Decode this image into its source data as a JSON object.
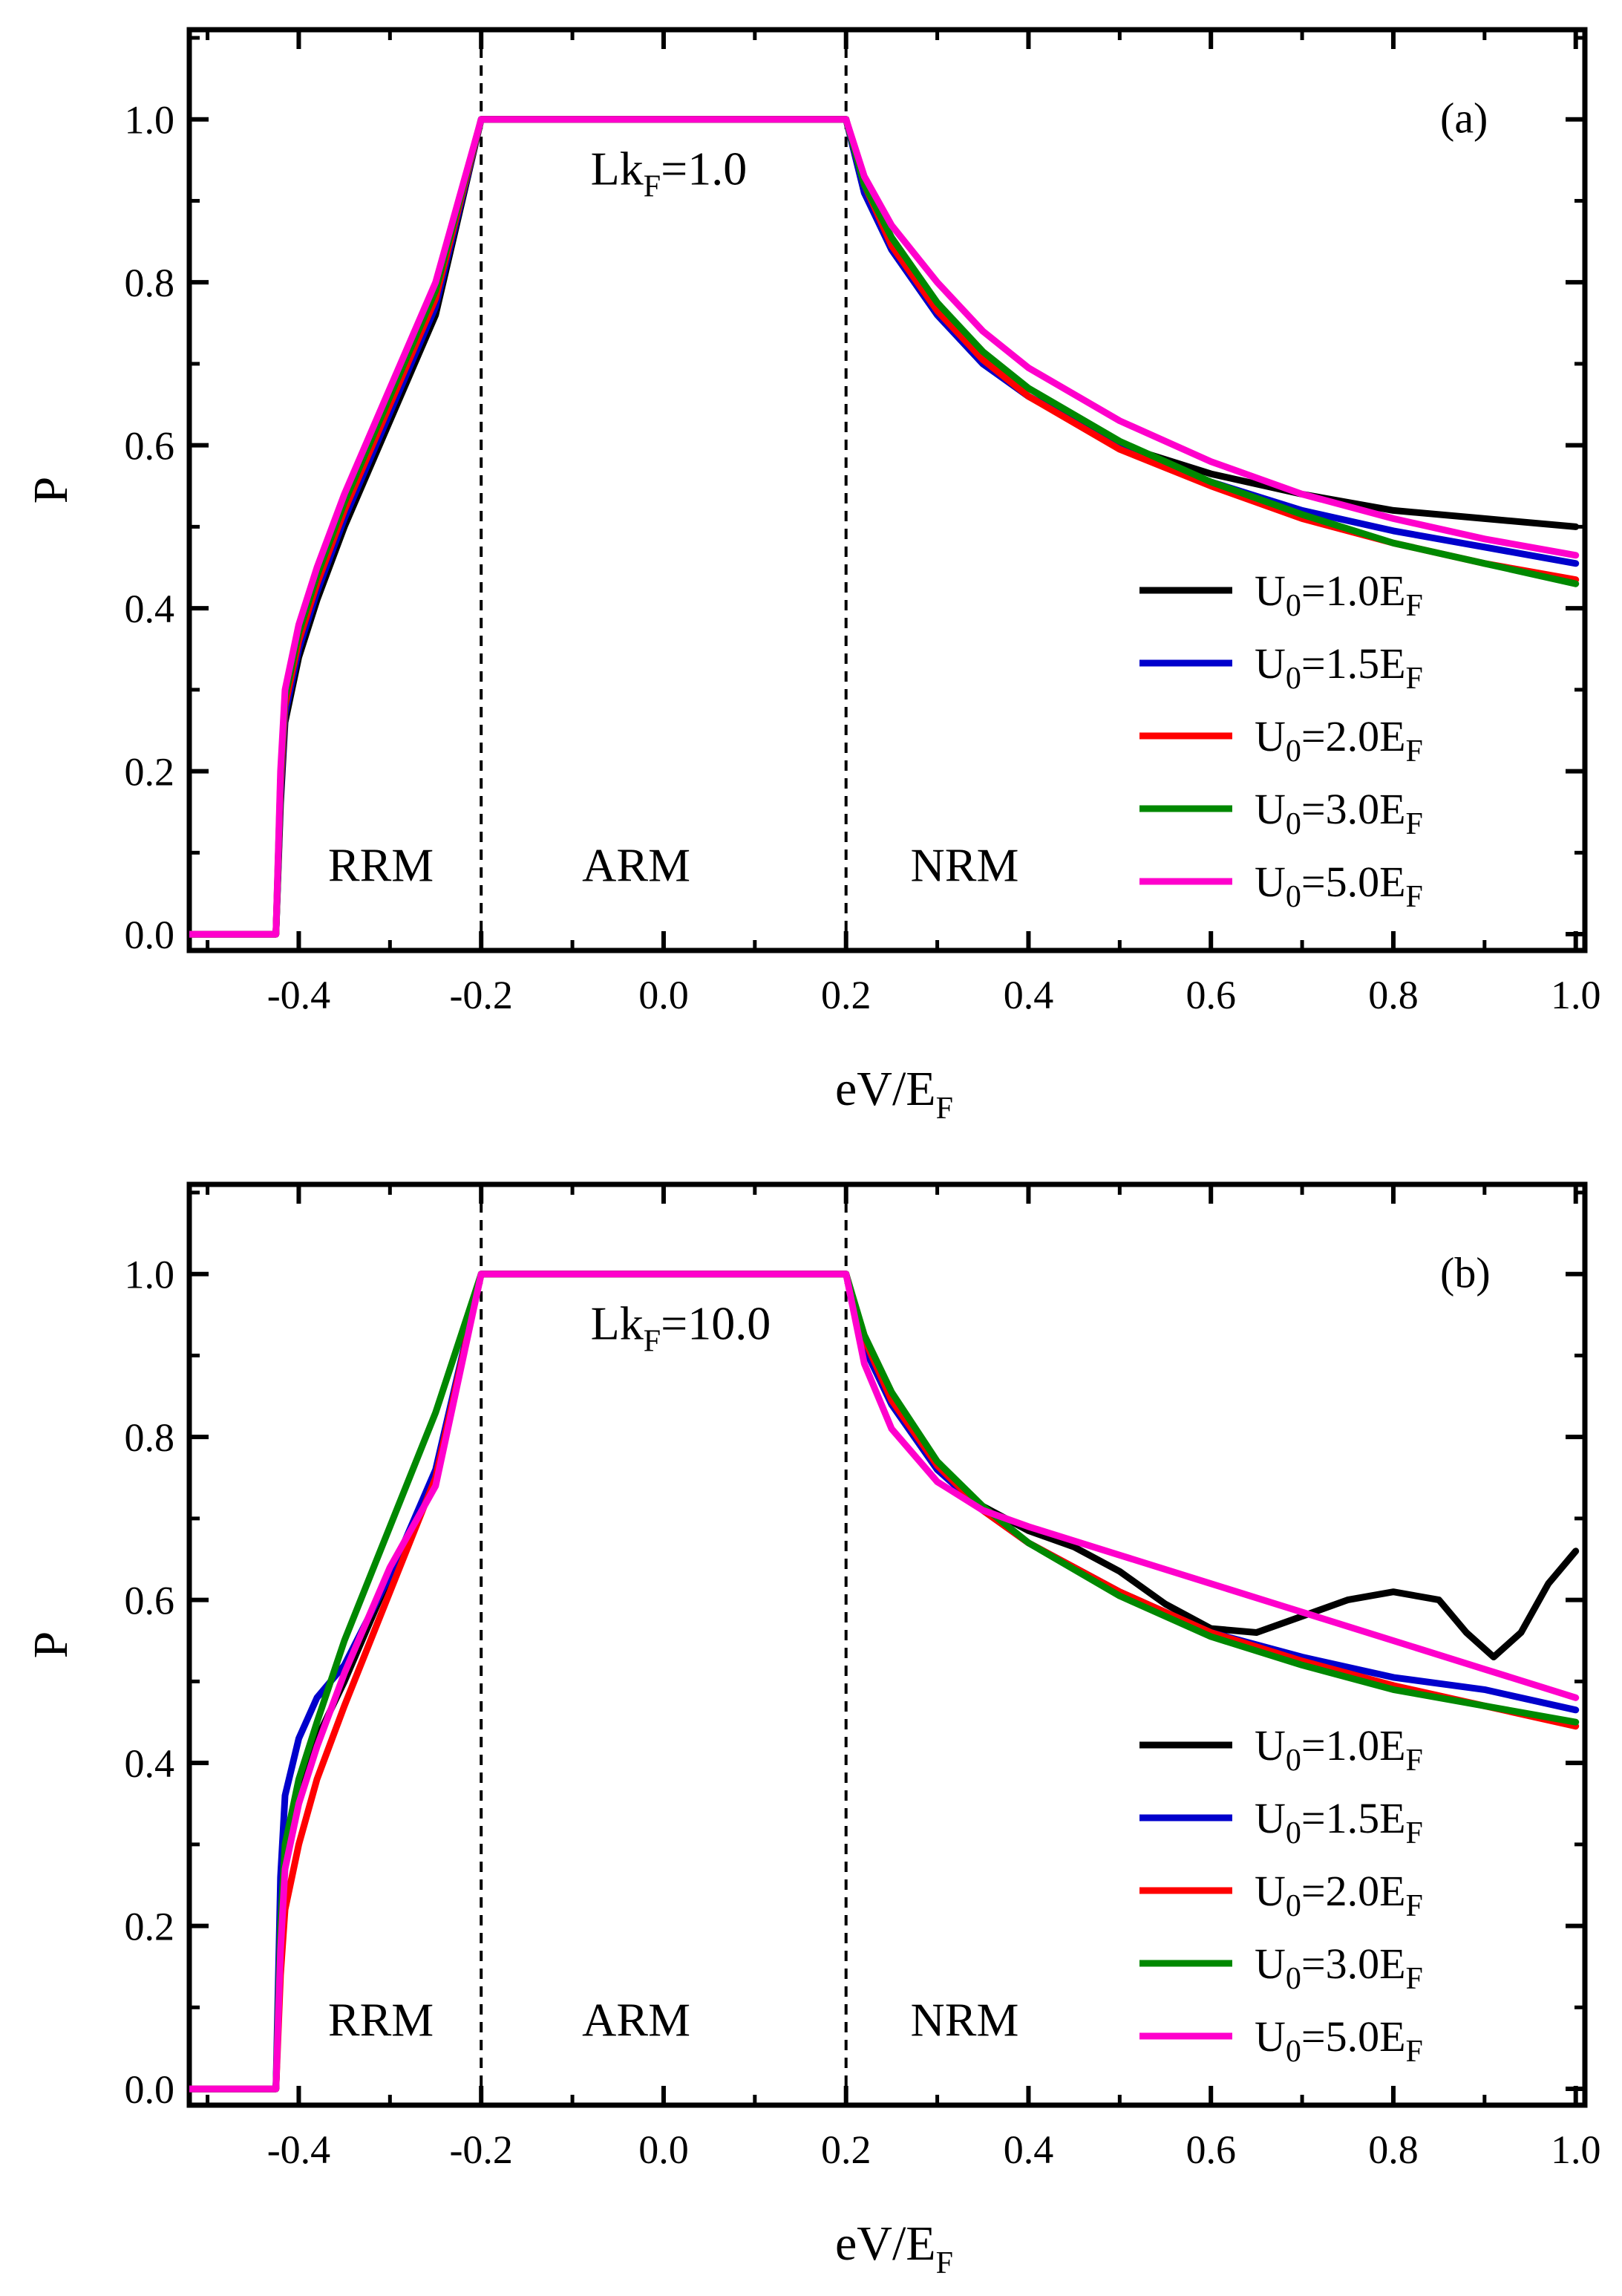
{
  "chart_data": [
    {
      "type": "line",
      "panel_label": "(a)",
      "parameter_label": {
        "main": "Lk",
        "sub": "F",
        "rest": "=1.0"
      },
      "xlabel": {
        "main": "eV/E",
        "sub": "F"
      },
      "ylabel": "P",
      "xlim": [
        -0.52,
        1.01
      ],
      "ylim": [
        -0.02,
        1.11
      ],
      "xticks": [
        "-0.4",
        "-0.2",
        "0.0",
        "0.2",
        "0.4",
        "0.6",
        "0.8",
        "1.0"
      ],
      "yticks": [
        "0.0",
        "0.2",
        "0.4",
        "0.6",
        "0.8",
        "1.0"
      ],
      "vlines": [
        -0.2,
        0.2
      ],
      "regions": [
        {
          "label": "RRM",
          "x": -0.31
        },
        {
          "label": "ARM",
          "x": -0.03
        },
        {
          "label": "NRM",
          "x": 0.33
        }
      ],
      "legend_position": "lower-right",
      "series": [
        {
          "name": "U0=1.0EF",
          "legend": {
            "pre": "U",
            "sub1": "0",
            "mid": "=1.0E",
            "sub2": "F"
          },
          "color": "#000000",
          "x": [
            -0.52,
            -0.425,
            -0.42,
            -0.415,
            -0.4,
            -0.38,
            -0.35,
            -0.3,
            -0.25,
            -0.2,
            0.2,
            0.22,
            0.25,
            0.3,
            0.35,
            0.4,
            0.5,
            0.6,
            0.7,
            0.8,
            0.9,
            1.0
          ],
          "y": [
            0.0,
            0.0,
            0.16,
            0.26,
            0.34,
            0.41,
            0.5,
            0.63,
            0.76,
            1.0,
            1.0,
            0.91,
            0.84,
            0.76,
            0.7,
            0.66,
            0.6,
            0.565,
            0.54,
            0.52,
            0.51,
            0.5
          ]
        },
        {
          "name": "U0=1.5EF",
          "legend": {
            "pre": "U",
            "sub1": "0",
            "mid": "=1.5E",
            "sub2": "F"
          },
          "color": "#0000cc",
          "x": [
            -0.52,
            -0.425,
            -0.42,
            -0.415,
            -0.4,
            -0.38,
            -0.35,
            -0.3,
            -0.25,
            -0.2,
            0.2,
            0.22,
            0.25,
            0.3,
            0.35,
            0.4,
            0.5,
            0.6,
            0.7,
            0.8,
            0.9,
            1.0
          ],
          "y": [
            0.0,
            0.0,
            0.17,
            0.27,
            0.35,
            0.42,
            0.51,
            0.64,
            0.77,
            1.0,
            1.0,
            0.91,
            0.84,
            0.76,
            0.7,
            0.66,
            0.6,
            0.555,
            0.52,
            0.495,
            0.475,
            0.455
          ]
        },
        {
          "name": "U0=2.0EF",
          "legend": {
            "pre": "U",
            "sub1": "0",
            "mid": "=2.0E",
            "sub2": "F"
          },
          "color": "#ff0000",
          "x": [
            -0.52,
            -0.425,
            -0.42,
            -0.415,
            -0.4,
            -0.38,
            -0.35,
            -0.3,
            -0.25,
            -0.2,
            0.2,
            0.22,
            0.25,
            0.3,
            0.35,
            0.4,
            0.5,
            0.6,
            0.7,
            0.8,
            0.9,
            1.0
          ],
          "y": [
            0.0,
            0.0,
            0.18,
            0.28,
            0.36,
            0.43,
            0.52,
            0.65,
            0.78,
            1.0,
            1.0,
            0.92,
            0.845,
            0.765,
            0.705,
            0.66,
            0.595,
            0.55,
            0.51,
            0.48,
            0.455,
            0.435
          ]
        },
        {
          "name": "U0=3.0EF",
          "legend": {
            "pre": "U",
            "sub1": "0",
            "mid": "=3.0E",
            "sub2": "F"
          },
          "color": "#008800",
          "x": [
            -0.52,
            -0.425,
            -0.42,
            -0.415,
            -0.4,
            -0.38,
            -0.35,
            -0.3,
            -0.25,
            -0.2,
            0.2,
            0.22,
            0.25,
            0.3,
            0.35,
            0.4,
            0.5,
            0.6,
            0.7,
            0.8,
            0.9,
            1.0
          ],
          "y": [
            0.0,
            0.0,
            0.19,
            0.29,
            0.37,
            0.44,
            0.53,
            0.66,
            0.79,
            1.0,
            1.0,
            0.92,
            0.855,
            0.775,
            0.715,
            0.67,
            0.605,
            0.555,
            0.515,
            0.48,
            0.455,
            0.43
          ]
        },
        {
          "name": "U0=5.0EF",
          "legend": {
            "pre": "U",
            "sub1": "0",
            "mid": "=5.0E",
            "sub2": "F"
          },
          "color": "#ff00cc",
          "x": [
            -0.52,
            -0.425,
            -0.42,
            -0.415,
            -0.4,
            -0.38,
            -0.35,
            -0.3,
            -0.25,
            -0.2,
            0.2,
            0.22,
            0.25,
            0.3,
            0.35,
            0.4,
            0.5,
            0.6,
            0.7,
            0.8,
            0.9,
            1.0
          ],
          "y": [
            0.0,
            0.0,
            0.2,
            0.3,
            0.38,
            0.45,
            0.54,
            0.67,
            0.8,
            1.0,
            1.0,
            0.93,
            0.87,
            0.8,
            0.74,
            0.695,
            0.63,
            0.58,
            0.54,
            0.51,
            0.485,
            0.465
          ]
        }
      ]
    },
    {
      "type": "line",
      "panel_label": "(b)",
      "parameter_label": {
        "main": "Lk",
        "sub": "F",
        "rest": "=10.0"
      },
      "xlabel": {
        "main": "eV/E",
        "sub": "F"
      },
      "ylabel": "P",
      "xlim": [
        -0.52,
        1.01
      ],
      "ylim": [
        -0.02,
        1.11
      ],
      "xticks": [
        "-0.4",
        "-0.2",
        "0.0",
        "0.2",
        "0.4",
        "0.6",
        "0.8",
        "1.0"
      ],
      "yticks": [
        "0.0",
        "0.2",
        "0.4",
        "0.6",
        "0.8",
        "1.0"
      ],
      "vlines": [
        -0.2,
        0.2
      ],
      "regions": [
        {
          "label": "RRM",
          "x": -0.31
        },
        {
          "label": "ARM",
          "x": -0.03
        },
        {
          "label": "NRM",
          "x": 0.33
        }
      ],
      "legend_position": "lower-right",
      "series": [
        {
          "name": "U0=1.0EF",
          "legend": {
            "pre": "U",
            "sub1": "0",
            "mid": "=1.0E",
            "sub2": "F"
          },
          "color": "#000000",
          "x": [
            -0.52,
            -0.425,
            -0.42,
            -0.415,
            -0.4,
            -0.38,
            -0.35,
            -0.3,
            -0.25,
            -0.2,
            0.2,
            0.22,
            0.25,
            0.3,
            0.35,
            0.4,
            0.45,
            0.5,
            0.55,
            0.6,
            0.65,
            0.7,
            0.75,
            0.8,
            0.85,
            0.88,
            0.91,
            0.94,
            0.97,
            1.0
          ],
          "y": [
            0.0,
            0.0,
            0.18,
            0.28,
            0.36,
            0.43,
            0.5,
            0.63,
            0.75,
            1.0,
            1.0,
            0.91,
            0.84,
            0.76,
            0.715,
            0.685,
            0.665,
            0.635,
            0.595,
            0.565,
            0.56,
            0.58,
            0.6,
            0.61,
            0.6,
            0.56,
            0.53,
            0.56,
            0.62,
            0.66
          ]
        },
        {
          "name": "U0=1.5EF",
          "legend": {
            "pre": "U",
            "sub1": "0",
            "mid": "=1.5E",
            "sub2": "F"
          },
          "color": "#0000cc",
          "x": [
            -0.52,
            -0.425,
            -0.42,
            -0.415,
            -0.4,
            -0.38,
            -0.35,
            -0.3,
            -0.25,
            -0.2,
            0.2,
            0.22,
            0.25,
            0.3,
            0.35,
            0.4,
            0.5,
            0.6,
            0.7,
            0.8,
            0.9,
            1.0
          ],
          "y": [
            0.0,
            0.0,
            0.26,
            0.36,
            0.43,
            0.48,
            0.52,
            0.63,
            0.76,
            1.0,
            1.0,
            0.91,
            0.84,
            0.76,
            0.71,
            0.67,
            0.61,
            0.56,
            0.53,
            0.505,
            0.49,
            0.465
          ]
        },
        {
          "name": "U0=2.0EF",
          "legend": {
            "pre": "U",
            "sub1": "0",
            "mid": "=2.0E",
            "sub2": "F"
          },
          "color": "#ff0000",
          "x": [
            -0.52,
            -0.425,
            -0.42,
            -0.415,
            -0.4,
            -0.38,
            -0.35,
            -0.3,
            -0.25,
            -0.2,
            0.2,
            0.22,
            0.25,
            0.3,
            0.35,
            0.4,
            0.5,
            0.6,
            0.7,
            0.8,
            0.9,
            1.0
          ],
          "y": [
            0.0,
            0.0,
            0.14,
            0.22,
            0.3,
            0.38,
            0.47,
            0.61,
            0.75,
            1.0,
            1.0,
            0.92,
            0.845,
            0.765,
            0.71,
            0.67,
            0.61,
            0.56,
            0.525,
            0.495,
            0.47,
            0.445
          ]
        },
        {
          "name": "U0=3.0EF",
          "legend": {
            "pre": "U",
            "sub1": "0",
            "mid": "=3.0E",
            "sub2": "F"
          },
          "color": "#008800",
          "x": [
            -0.52,
            -0.425,
            -0.42,
            -0.415,
            -0.4,
            -0.38,
            -0.35,
            -0.3,
            -0.25,
            -0.2,
            0.2,
            0.22,
            0.25,
            0.3,
            0.35,
            0.4,
            0.5,
            0.6,
            0.7,
            0.8,
            0.9,
            1.0
          ],
          "y": [
            0.0,
            0.0,
            0.2,
            0.3,
            0.38,
            0.45,
            0.55,
            0.69,
            0.83,
            1.0,
            1.0,
            0.925,
            0.855,
            0.77,
            0.715,
            0.67,
            0.605,
            0.555,
            0.52,
            0.49,
            0.47,
            0.45
          ]
        },
        {
          "name": "U0=5.0EF",
          "legend": {
            "pre": "U",
            "sub1": "0",
            "mid": "=5.0E",
            "sub2": "F"
          },
          "color": "#ff00cc",
          "x": [
            -0.52,
            -0.425,
            -0.42,
            -0.415,
            -0.4,
            -0.38,
            -0.35,
            -0.3,
            -0.25,
            -0.2,
            0.2,
            0.22,
            0.25,
            0.3,
            0.35,
            0.4,
            0.5,
            0.6,
            0.7,
            0.8,
            0.9,
            1.0
          ],
          "y": [
            0.0,
            0.0,
            0.17,
            0.27,
            0.35,
            0.42,
            0.51,
            0.64,
            0.74,
            1.0,
            1.0,
            0.89,
            0.81,
            0.745,
            0.71,
            0.69,
            0.655,
            0.62,
            0.585,
            0.55,
            0.515,
            0.48
          ]
        }
      ]
    }
  ]
}
